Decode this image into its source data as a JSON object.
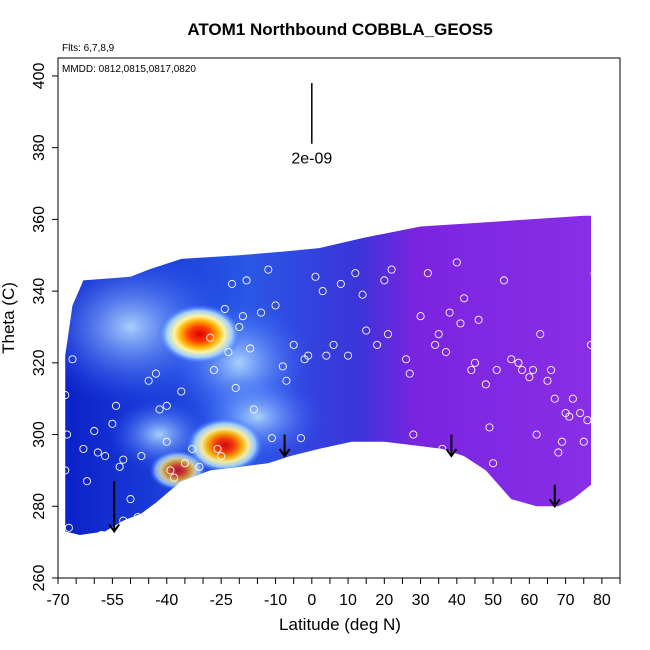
{
  "chart_data": {
    "type": "heatmap",
    "title": "ATOM1 Northbound COBBLA_GEOS5",
    "flights_note": "Flts: 6,7,8,9",
    "dates_note": "MMDD: 0812,0815,0817,0820",
    "xlabel": "Latitude (deg N)",
    "ylabel": "Theta (C)",
    "xlim": [
      -70,
      85
    ],
    "ylim": [
      260,
      405
    ],
    "xticks": [
      -70,
      -55,
      -40,
      -25,
      -10,
      0,
      10,
      20,
      30,
      40,
      50,
      60,
      70,
      80
    ],
    "xtick_labels": [
      "-70",
      "-55",
      "-40",
      "-25",
      "-10",
      "0",
      "10",
      "20",
      "30",
      "40",
      "50",
      "60",
      "70",
      "80"
    ],
    "yticks": [
      260,
      280,
      300,
      320,
      340,
      360,
      380,
      400
    ],
    "ytick_labels": [
      "260",
      "280",
      "300",
      "320",
      "340",
      "360",
      "380",
      "400"
    ],
    "scale_bar": {
      "label": "2e-09",
      "x": 0,
      "y_top": 398,
      "y_bottom": 385
    },
    "arrows": [
      {
        "x": -54.5,
        "y_top": 287,
        "y_bottom": 273
      },
      {
        "x": -7.5,
        "y_top": 300,
        "y_bottom": 294
      },
      {
        "x": 38.5,
        "y_top": 300,
        "y_bottom": 294
      },
      {
        "x": 67,
        "y_top": 286,
        "y_bottom": 280
      }
    ],
    "hotspots": [
      {
        "x": -31,
        "y": 328,
        "level": 1.0
      },
      {
        "x": -24,
        "y": 297,
        "level": 0.9
      },
      {
        "x": -37,
        "y": 290,
        "level": 0.55
      }
    ],
    "colors": {
      "scale": [
        "#0000b4",
        "#2a5cff",
        "#9fd0ff",
        "#fff3a0",
        "#ffb300",
        "#ff3c00",
        "#d80000"
      ],
      "north_fill": "#7b24e0"
    },
    "samples": [
      [
        -68,
        311
      ],
      [
        -67.5,
        300
      ],
      [
        -68,
        290
      ],
      [
        -67,
        274
      ],
      [
        -66,
        321
      ],
      [
        -63,
        296
      ],
      [
        -62,
        287
      ],
      [
        -60,
        301
      ],
      [
        -59,
        295
      ],
      [
        -58,
        272
      ],
      [
        -57,
        294
      ],
      [
        -55,
        303
      ],
      [
        -54,
        308
      ],
      [
        -53,
        291
      ],
      [
        -52,
        276
      ],
      [
        -52,
        293
      ],
      [
        -50,
        282
      ],
      [
        -48,
        277
      ],
      [
        -47,
        294
      ],
      [
        -45,
        315
      ],
      [
        -43,
        317
      ],
      [
        -42,
        307
      ],
      [
        -40,
        308
      ],
      [
        -40,
        298
      ],
      [
        -39,
        290
      ],
      [
        -38,
        288
      ],
      [
        -37,
        276
      ],
      [
        -36,
        312
      ],
      [
        -35,
        292
      ],
      [
        -33,
        296
      ],
      [
        -31,
        291
      ],
      [
        -28,
        327
      ],
      [
        -27,
        318
      ],
      [
        -26,
        296
      ],
      [
        -25,
        294
      ],
      [
        -24,
        335
      ],
      [
        -23,
        323
      ],
      [
        -22,
        342
      ],
      [
        -21,
        313
      ],
      [
        -20,
        330
      ],
      [
        -19,
        333
      ],
      [
        -18,
        343
      ],
      [
        -17,
        324
      ],
      [
        -16,
        307
      ],
      [
        -14,
        334
      ],
      [
        -12,
        346
      ],
      [
        -11,
        299
      ],
      [
        -10,
        336
      ],
      [
        -8,
        319
      ],
      [
        -7,
        315
      ],
      [
        -5,
        325
      ],
      [
        -3,
        299
      ],
      [
        -2,
        321
      ],
      [
        -1,
        322
      ],
      [
        1,
        344
      ],
      [
        3,
        340
      ],
      [
        4,
        322
      ],
      [
        6,
        325
      ],
      [
        8,
        342
      ],
      [
        10,
        322
      ],
      [
        12,
        345
      ],
      [
        14,
        339
      ],
      [
        15,
        329
      ],
      [
        18,
        325
      ],
      [
        20,
        343
      ],
      [
        21,
        328
      ],
      [
        22,
        346
      ],
      [
        25,
        296
      ],
      [
        26,
        321
      ],
      [
        27,
        317
      ],
      [
        28,
        300
      ],
      [
        30,
        333
      ],
      [
        32,
        345
      ],
      [
        34,
        325
      ],
      [
        35,
        328
      ],
      [
        36,
        296
      ],
      [
        37,
        323
      ],
      [
        38,
        334
      ],
      [
        40,
        348
      ],
      [
        41,
        331
      ],
      [
        42,
        338
      ],
      [
        44,
        318
      ],
      [
        45,
        320
      ],
      [
        46,
        332
      ],
      [
        48,
        314
      ],
      [
        49,
        302
      ],
      [
        50,
        292
      ],
      [
        51,
        318
      ],
      [
        53,
        343
      ],
      [
        55,
        321
      ],
      [
        57,
        320
      ],
      [
        58,
        318
      ],
      [
        60,
        316
      ],
      [
        61,
        318
      ],
      [
        62,
        300
      ],
      [
        63,
        328
      ],
      [
        65,
        315
      ],
      [
        66,
        318
      ],
      [
        67,
        310
      ],
      [
        68,
        295
      ],
      [
        69,
        298
      ],
      [
        70,
        306
      ],
      [
        71,
        305
      ],
      [
        72,
        310
      ],
      [
        73,
        278
      ],
      [
        74,
        306
      ],
      [
        75,
        280
      ],
      [
        75,
        298
      ],
      [
        76,
        304
      ],
      [
        77,
        325
      ],
      [
        78,
        345
      ],
      [
        79,
        331
      ],
      [
        80,
        305
      ],
      [
        81,
        278
      ],
      [
        82,
        300
      ]
    ]
  }
}
